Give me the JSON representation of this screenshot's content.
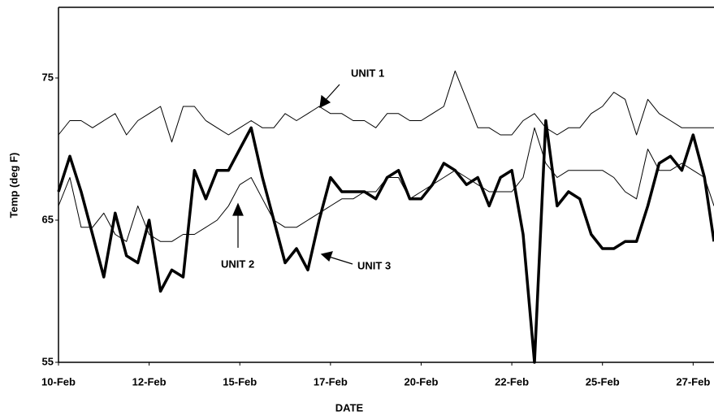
{
  "chart_data": {
    "type": "line",
    "x_label": "DATE",
    "y_label": "Temp (deg F)",
    "x": [
      0,
      0.125,
      0.25,
      0.375,
      0.5,
      0.625,
      0.75,
      0.875,
      1,
      1.125,
      1.25,
      1.375,
      1.5,
      1.625,
      1.75,
      1.875,
      2,
      2.125,
      2.25,
      2.375,
      2.5,
      2.625,
      2.75,
      2.875,
      3,
      3.125,
      3.25,
      3.375,
      3.5,
      3.625,
      3.75,
      3.875,
      4,
      4.125,
      4.25,
      4.375,
      4.5,
      4.625,
      4.75,
      4.875,
      5,
      5.125,
      5.25,
      5.375,
      5.5,
      5.625,
      5.75,
      5.875,
      6,
      6.125,
      6.25,
      6.375,
      6.5,
      6.625,
      6.75,
      6.875,
      7,
      7.125,
      7.23
    ],
    "series": [
      {
        "name": "UNIT 1",
        "color": "#000000",
        "width": 1,
        "values": [
          71,
          72,
          72,
          71.5,
          72,
          72.5,
          71,
          72,
          72.5,
          73,
          70.5,
          73,
          73,
          72,
          71.5,
          71,
          71.5,
          72,
          71.5,
          71.5,
          72.5,
          72,
          72.5,
          73,
          72.5,
          72.5,
          72,
          72,
          71.5,
          72.5,
          72.5,
          72,
          72,
          72.5,
          73,
          75.5,
          73.5,
          71.5,
          71.5,
          71,
          71,
          72,
          72.5,
          71.5,
          71,
          71.5,
          71.5,
          72.5,
          73,
          74,
          73.5,
          71,
          73.5,
          72.5,
          72,
          71.5,
          71.5,
          71.5,
          71.5
        ]
      },
      {
        "name": "UNIT 2",
        "color": "#000000",
        "width": 1,
        "values": [
          66,
          68,
          64.5,
          64.5,
          65.5,
          64,
          63.5,
          66,
          64,
          63.5,
          63.5,
          64,
          64,
          64.5,
          65,
          66,
          67.5,
          68,
          66.5,
          65,
          64.5,
          64.5,
          65,
          65.5,
          66,
          66.5,
          66.5,
          67,
          67,
          68,
          68,
          66.5,
          67,
          67.5,
          68,
          68.5,
          68,
          67.5,
          67,
          67,
          67,
          68,
          71.5,
          69,
          68,
          68.5,
          68.5,
          68.5,
          68.5,
          68,
          67,
          66.5,
          70,
          68.5,
          68.5,
          69,
          68.5,
          68,
          66
        ]
      },
      {
        "name": "UNIT 3",
        "color": "#000000",
        "width": 3.5,
        "values": [
          67,
          69.5,
          67,
          64,
          61,
          65.5,
          62.5,
          62,
          65,
          60,
          61.5,
          61,
          68.5,
          66.5,
          68.5,
          68.5,
          70,
          71.5,
          68,
          65,
          62,
          63,
          61.5,
          65,
          68,
          67,
          67,
          67,
          66.5,
          68,
          68.5,
          66.5,
          66.5,
          67.5,
          69,
          68.5,
          67.5,
          68,
          66,
          68,
          68.5,
          64,
          55,
          72,
          66,
          67,
          66.5,
          64,
          63,
          63,
          63.5,
          63.5,
          66,
          69,
          69.5,
          68.5,
          71,
          68,
          63.5
        ]
      }
    ],
    "xlim": [
      0,
      7.23
    ],
    "xticks": [
      {
        "value": 0,
        "label": "10-Feb"
      },
      {
        "value": 1,
        "label": "12-Feb"
      },
      {
        "value": 2,
        "label": "15-Feb"
      },
      {
        "value": 3,
        "label": "17-Feb"
      },
      {
        "value": 4,
        "label": "20-Feb"
      },
      {
        "value": 5,
        "label": "22-Feb"
      },
      {
        "value": 6,
        "label": "25-Feb"
      },
      {
        "value": 7,
        "label": "27-Feb"
      }
    ],
    "ylim": [
      55,
      80
    ],
    "yticks": [
      55,
      65,
      75
    ],
    "grid": false
  }
}
